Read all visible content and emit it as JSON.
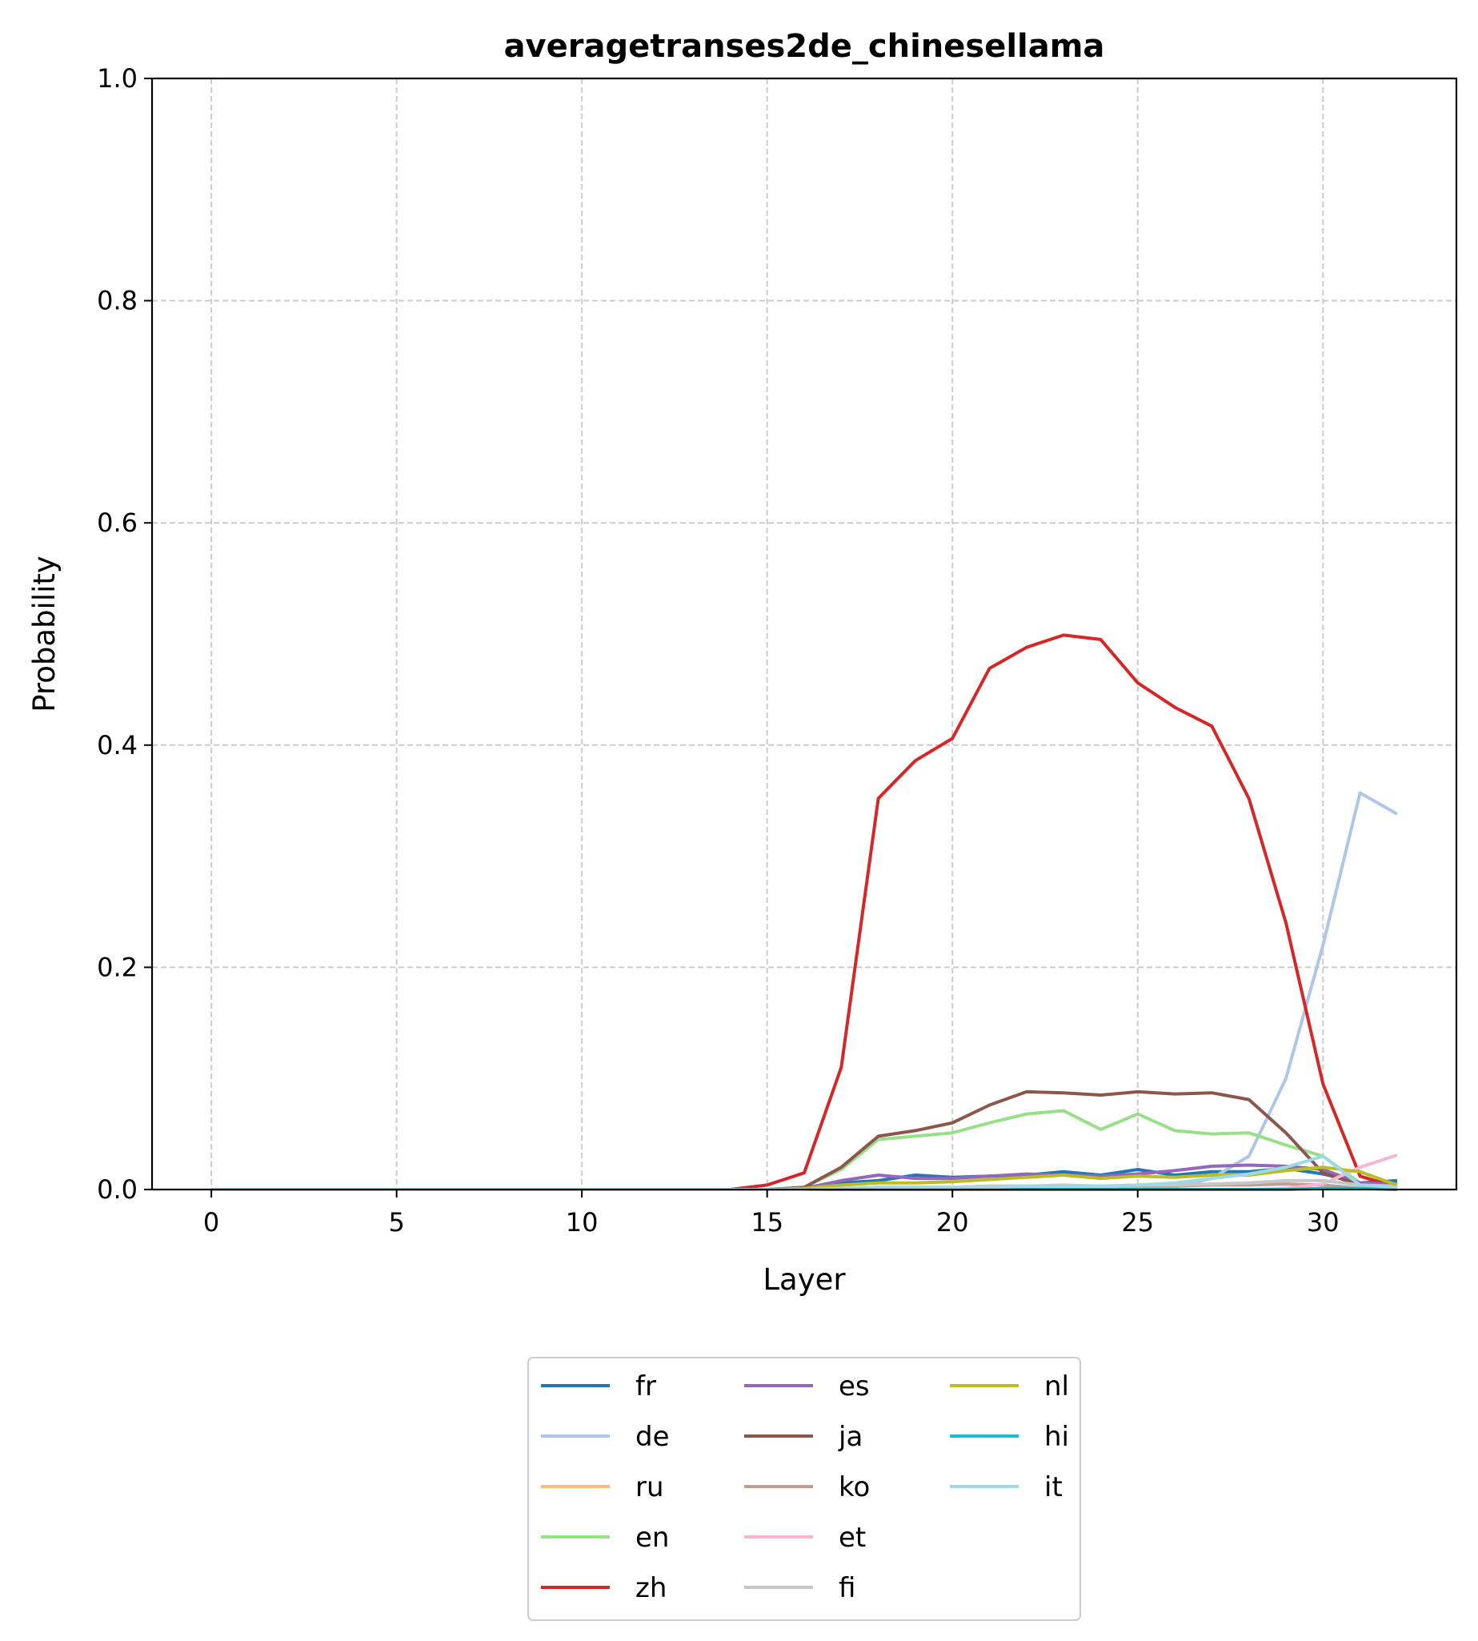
{
  "chart_data": {
    "type": "line",
    "title": "averagetranses2de_chinesellama",
    "xlabel": "Layer",
    "ylabel": "Probability",
    "xlim": [
      -1.6,
      33.6
    ],
    "ylim": [
      0,
      1.0
    ],
    "x_ticks": [
      "0",
      "5",
      "10",
      "15",
      "20",
      "25",
      "30"
    ],
    "y_ticks": [
      "0.0",
      "0.2",
      "0.4",
      "0.6",
      "0.8",
      "1.0"
    ],
    "grid": true,
    "legend_position": "bottom-center",
    "legend_columns": 3,
    "x": [
      0,
      1,
      2,
      3,
      4,
      5,
      6,
      7,
      8,
      9,
      10,
      11,
      12,
      13,
      14,
      15,
      16,
      17,
      18,
      19,
      20,
      21,
      22,
      23,
      24,
      25,
      26,
      27,
      28,
      29,
      30,
      31,
      32
    ],
    "series": [
      {
        "name": "fr",
        "color": "#1f77b4",
        "values": [
          0,
          0,
          0,
          0,
          0,
          0,
          0,
          0,
          0,
          0,
          0,
          0,
          0,
          0,
          0,
          0,
          0.001,
          0.006,
          0.008,
          0.013,
          0.011,
          0.012,
          0.013,
          0.016,
          0.013,
          0.018,
          0.013,
          0.016,
          0.016,
          0.019,
          0.014,
          0.006,
          0.008
        ]
      },
      {
        "name": "de",
        "color": "#aec7e8",
        "values": [
          0,
          0,
          0,
          0,
          0,
          0,
          0,
          0,
          0,
          0,
          0,
          0,
          0,
          0,
          0,
          0,
          0,
          0,
          0,
          0,
          0,
          0,
          0,
          0,
          0,
          0,
          0.002,
          0.01,
          0.03,
          0.1,
          0.22,
          0.357,
          0.338
        ]
      },
      {
        "name": "ru",
        "color": "#ffbb78",
        "values": [
          0,
          0,
          0,
          0,
          0,
          0,
          0,
          0,
          0,
          0,
          0,
          0,
          0,
          0,
          0,
          0,
          0,
          0,
          0,
          0,
          0,
          0,
          0,
          0,
          0,
          0,
          0,
          0,
          0,
          0,
          0.001,
          0.001,
          0
        ]
      },
      {
        "name": "en",
        "color": "#98df8a",
        "values": [
          0,
          0,
          0,
          0,
          0,
          0,
          0,
          0,
          0,
          0,
          0,
          0,
          0,
          0,
          0,
          0,
          0.002,
          0.018,
          0.045,
          0.048,
          0.051,
          0.06,
          0.068,
          0.071,
          0.054,
          0.068,
          0.053,
          0.05,
          0.051,
          0.04,
          0.03,
          0.006,
          0.003
        ]
      },
      {
        "name": "zh",
        "color": "#d62728",
        "values": [
          0,
          0,
          0,
          0,
          0,
          0,
          0,
          0,
          0,
          0,
          0,
          0,
          0,
          0,
          0,
          0.004,
          0.015,
          0.11,
          0.352,
          0.386,
          0.406,
          0.469,
          0.488,
          0.499,
          0.495,
          0.456,
          0.434,
          0.417,
          0.352,
          0.24,
          0.095,
          0.012,
          0.002
        ]
      },
      {
        "name": "es",
        "color": "#9467bd",
        "values": [
          0,
          0,
          0,
          0,
          0,
          0,
          0,
          0,
          0,
          0,
          0,
          0,
          0,
          0,
          0,
          0,
          0.001,
          0.008,
          0.013,
          0.01,
          0.01,
          0.012,
          0.014,
          0.013,
          0.012,
          0.014,
          0.017,
          0.021,
          0.022,
          0.021,
          0.018,
          0.006,
          0.005
        ]
      },
      {
        "name": "ja",
        "color": "#8c564b",
        "values": [
          0,
          0,
          0,
          0,
          0,
          0,
          0,
          0,
          0,
          0,
          0,
          0,
          0,
          0,
          0,
          0,
          0.002,
          0.02,
          0.048,
          0.053,
          0.06,
          0.076,
          0.088,
          0.087,
          0.085,
          0.088,
          0.086,
          0.087,
          0.081,
          0.051,
          0.015,
          0.004,
          0.002
        ]
      },
      {
        "name": "ko",
        "color": "#c49c94",
        "values": [
          0,
          0,
          0,
          0,
          0,
          0,
          0,
          0,
          0,
          0,
          0,
          0,
          0,
          0,
          0,
          0,
          0,
          0.001,
          0.002,
          0.002,
          0.002,
          0.003,
          0.003,
          0.003,
          0.003,
          0.003,
          0.003,
          0.004,
          0.004,
          0.005,
          0.004,
          0.001,
          0.001
        ]
      },
      {
        "name": "et",
        "color": "#f7b6d2",
        "values": [
          0,
          0,
          0,
          0,
          0,
          0,
          0,
          0,
          0,
          0,
          0,
          0,
          0,
          0,
          0,
          0,
          0,
          0,
          0,
          0,
          0,
          0,
          0,
          0,
          0,
          0,
          0,
          0,
          0,
          0.001,
          0.005,
          0.02,
          0.031
        ]
      },
      {
        "name": "fi",
        "color": "#c7c7c7",
        "values": [
          0,
          0,
          0,
          0,
          0,
          0,
          0,
          0,
          0,
          0,
          0,
          0,
          0,
          0,
          0,
          0,
          0,
          0.001,
          0.002,
          0.002,
          0.002,
          0.003,
          0.003,
          0.004,
          0.003,
          0.004,
          0.004,
          0.005,
          0.006,
          0.008,
          0.008,
          0.004,
          0.003
        ]
      },
      {
        "name": "nl",
        "color": "#bcbd22",
        "values": [
          0,
          0,
          0,
          0,
          0,
          0,
          0,
          0,
          0,
          0,
          0,
          0,
          0,
          0,
          0,
          0,
          0.001,
          0.004,
          0.006,
          0.006,
          0.007,
          0.009,
          0.011,
          0.013,
          0.01,
          0.012,
          0.011,
          0.013,
          0.013,
          0.017,
          0.02,
          0.016,
          0.004
        ]
      },
      {
        "name": "hi",
        "color": "#17becf",
        "values": [
          0,
          0,
          0,
          0,
          0,
          0,
          0,
          0,
          0,
          0,
          0,
          0,
          0,
          0,
          0,
          0,
          0,
          0,
          0,
          0,
          0,
          0,
          0,
          0,
          0,
          0,
          0,
          0,
          0,
          0,
          0.001,
          0.001,
          0
        ]
      },
      {
        "name": "it",
        "color": "#9edae5",
        "values": [
          0,
          0,
          0,
          0,
          0,
          0,
          0,
          0,
          0,
          0,
          0,
          0,
          0,
          0,
          0,
          0,
          0,
          0.001,
          0.002,
          0.002,
          0.002,
          0.002,
          0.003,
          0.003,
          0.003,
          0.004,
          0.006,
          0.01,
          0.014,
          0.02,
          0.03,
          0.004,
          0.002
        ]
      }
    ]
  }
}
